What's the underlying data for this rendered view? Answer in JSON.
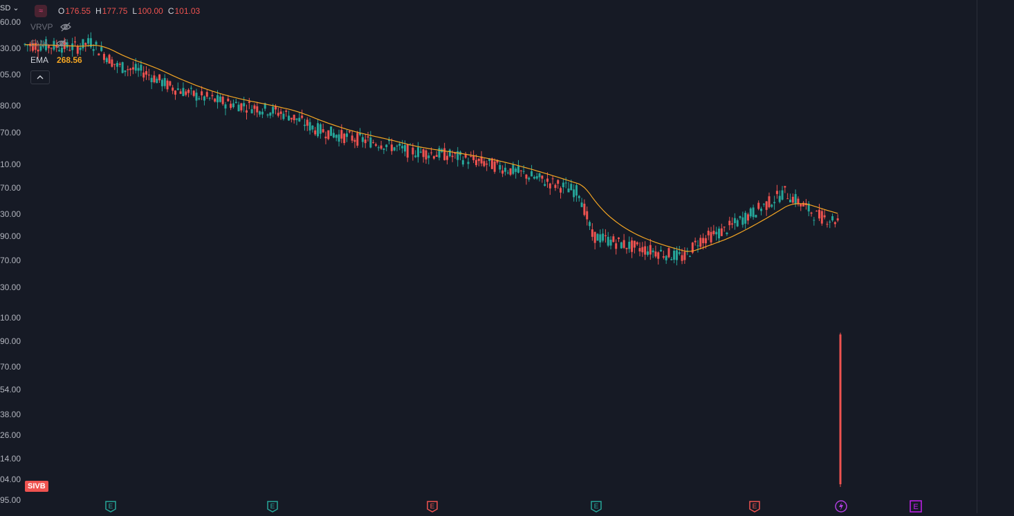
{
  "symbol": {
    "currency_fragment": "SD",
    "logo_glyph": "≈",
    "ticker_badge": "SIVB"
  },
  "ohlc": {
    "open_label": "O",
    "open": "176.55",
    "high_label": "H",
    "high": "177.75",
    "low_label": "L",
    "low": "100.00",
    "close_label": "C",
    "close": "101.03"
  },
  "indicators": {
    "vrvp_label": "VRVP",
    "ema_hidden_label": "EMA",
    "ema_label": "EMA",
    "ema_value": "268.56"
  },
  "price_axis_ticks": [
    "60.00",
    "30.00",
    "05.00",
    "80.00",
    "70.00",
    "10.00",
    "70.00",
    "30.00",
    "90.00",
    "70.00",
    "30.00",
    "10.00",
    "90.00",
    "70.00",
    "54.00",
    "38.00",
    "26.00",
    "14.00",
    "04.00",
    "95.00"
  ],
  "events": [
    {
      "type": "earnings",
      "glyph": "E",
      "color": "#26a69a"
    },
    {
      "type": "earnings",
      "glyph": "E",
      "color": "#26a69a"
    },
    {
      "type": "earnings",
      "glyph": "E",
      "color": "#ef5350"
    },
    {
      "type": "earnings",
      "glyph": "E",
      "color": "#26a69a"
    },
    {
      "type": "earnings",
      "glyph": "E",
      "color": "#ef5350"
    },
    {
      "type": "split",
      "glyph": "⚡",
      "color": "#b03ee0"
    },
    {
      "type": "earnings-upcoming",
      "glyph": "E",
      "color": "#c51ff0"
    }
  ],
  "colors": {
    "background": "#161a25",
    "up": "#26a69a",
    "down": "#ef5350",
    "ema_line": "#f5a623"
  },
  "chart_data": {
    "type": "candlestick",
    "series": [
      {
        "name": "EMA",
        "values_description_value": "268.56"
      }
    ],
    "last_close": 101.03,
    "trend_key_closes": [
      {
        "i": 0,
        "c": 520
      },
      {
        "i": 20,
        "c": 515
      },
      {
        "i": 25,
        "c": 525
      },
      {
        "i": 35,
        "c": 480
      },
      {
        "i": 45,
        "c": 470
      },
      {
        "i": 55,
        "c": 445
      },
      {
        "i": 65,
        "c": 430
      },
      {
        "i": 75,
        "c": 420
      },
      {
        "i": 90,
        "c": 410
      },
      {
        "i": 100,
        "c": 400
      },
      {
        "i": 110,
        "c": 380
      },
      {
        "i": 120,
        "c": 370
      },
      {
        "i": 135,
        "c": 360
      },
      {
        "i": 145,
        "c": 350
      },
      {
        "i": 160,
        "c": 345
      },
      {
        "i": 170,
        "c": 338
      },
      {
        "i": 180,
        "c": 330
      },
      {
        "i": 190,
        "c": 320
      },
      {
        "i": 200,
        "c": 310
      },
      {
        "i": 210,
        "c": 300
      },
      {
        "i": 215,
        "c": 255
      },
      {
        "i": 230,
        "c": 245
      },
      {
        "i": 240,
        "c": 240
      },
      {
        "i": 250,
        "c": 235
      },
      {
        "i": 255,
        "c": 250
      },
      {
        "i": 265,
        "c": 260
      },
      {
        "i": 280,
        "c": 285
      },
      {
        "i": 288,
        "c": 300
      },
      {
        "i": 300,
        "c": 275
      },
      {
        "i": 308,
        "c": 270
      },
      {
        "i": 309,
        "c": 101.03
      }
    ]
  }
}
